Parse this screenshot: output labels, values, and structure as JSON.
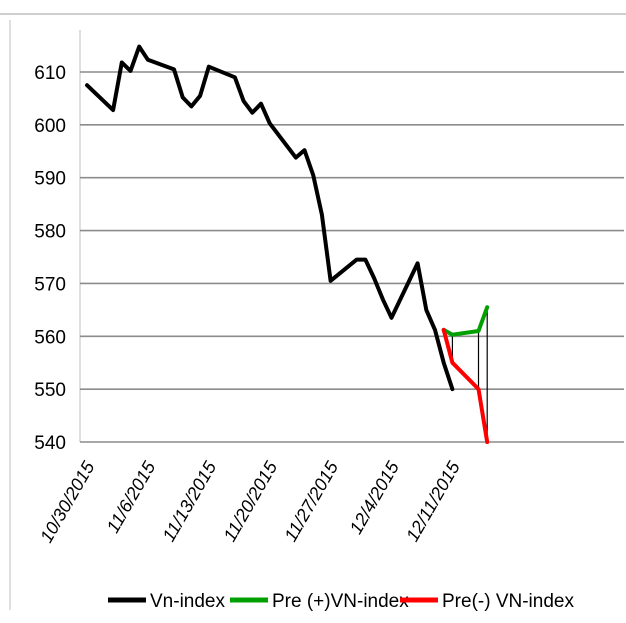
{
  "chart_data": {
    "type": "line",
    "title": "",
    "xlabel": "",
    "ylabel": "",
    "ylim": [
      540,
      610
    ],
    "yticks": [
      540,
      550,
      560,
      570,
      580,
      590,
      600,
      610
    ],
    "grid": "horizontal",
    "legend_position": "bottom",
    "x_tick_labels": [
      "10/30/2015",
      "11/6/2015",
      "11/13/2015",
      "11/20/2015",
      "11/27/2015",
      "12/4/2015",
      "12/11/2015"
    ],
    "series": [
      {
        "name": "Vn-index",
        "color": "#000000",
        "x": [
          "10/30/2015",
          "11/2/2015",
          "11/3/2015",
          "11/4/2015",
          "11/5/2015",
          "11/6/2015",
          "11/9/2015",
          "11/10/2015",
          "11/11/2015",
          "11/12/2015",
          "11/13/2015",
          "11/16/2015",
          "11/17/2015",
          "11/18/2015",
          "11/19/2015",
          "11/20/2015",
          "11/23/2015",
          "11/24/2015",
          "11/25/2015",
          "11/26/2015",
          "11/27/2015",
          "11/30/2015",
          "12/1/2015",
          "12/2/2015",
          "12/3/2015",
          "12/4/2015",
          "12/7/2015",
          "12/8/2015",
          "12/9/2015",
          "12/10/2015",
          "12/11/2015"
        ],
        "values": [
          607.5,
          602.8,
          611.8,
          610.2,
          614.8,
          612.3,
          610.5,
          605.2,
          603.5,
          605.5,
          611.0,
          609.0,
          604.5,
          602.3,
          604.0,
          600.3,
          593.8,
          595.2,
          590.5,
          583.0,
          570.5,
          574.5,
          574.5,
          571.0,
          567.0,
          563.5,
          573.8,
          565.0,
          561.2,
          555.0,
          550.0
        ]
      },
      {
        "name": "Pre (+)VN-index",
        "color": "#00a000",
        "x": [
          "12/10/2015",
          "12/11/2015",
          "12/14/2015",
          "12/15/2015"
        ],
        "values": [
          561.2,
          560.3,
          561.0,
          565.5
        ]
      },
      {
        "name": "Pre(-) VN-index",
        "color": "#ff0000",
        "x": [
          "12/10/2015",
          "12/11/2015",
          "12/14/2015",
          "12/15/2015"
        ],
        "values": [
          561.2,
          555.0,
          550.0,
          540.0
        ]
      }
    ]
  }
}
